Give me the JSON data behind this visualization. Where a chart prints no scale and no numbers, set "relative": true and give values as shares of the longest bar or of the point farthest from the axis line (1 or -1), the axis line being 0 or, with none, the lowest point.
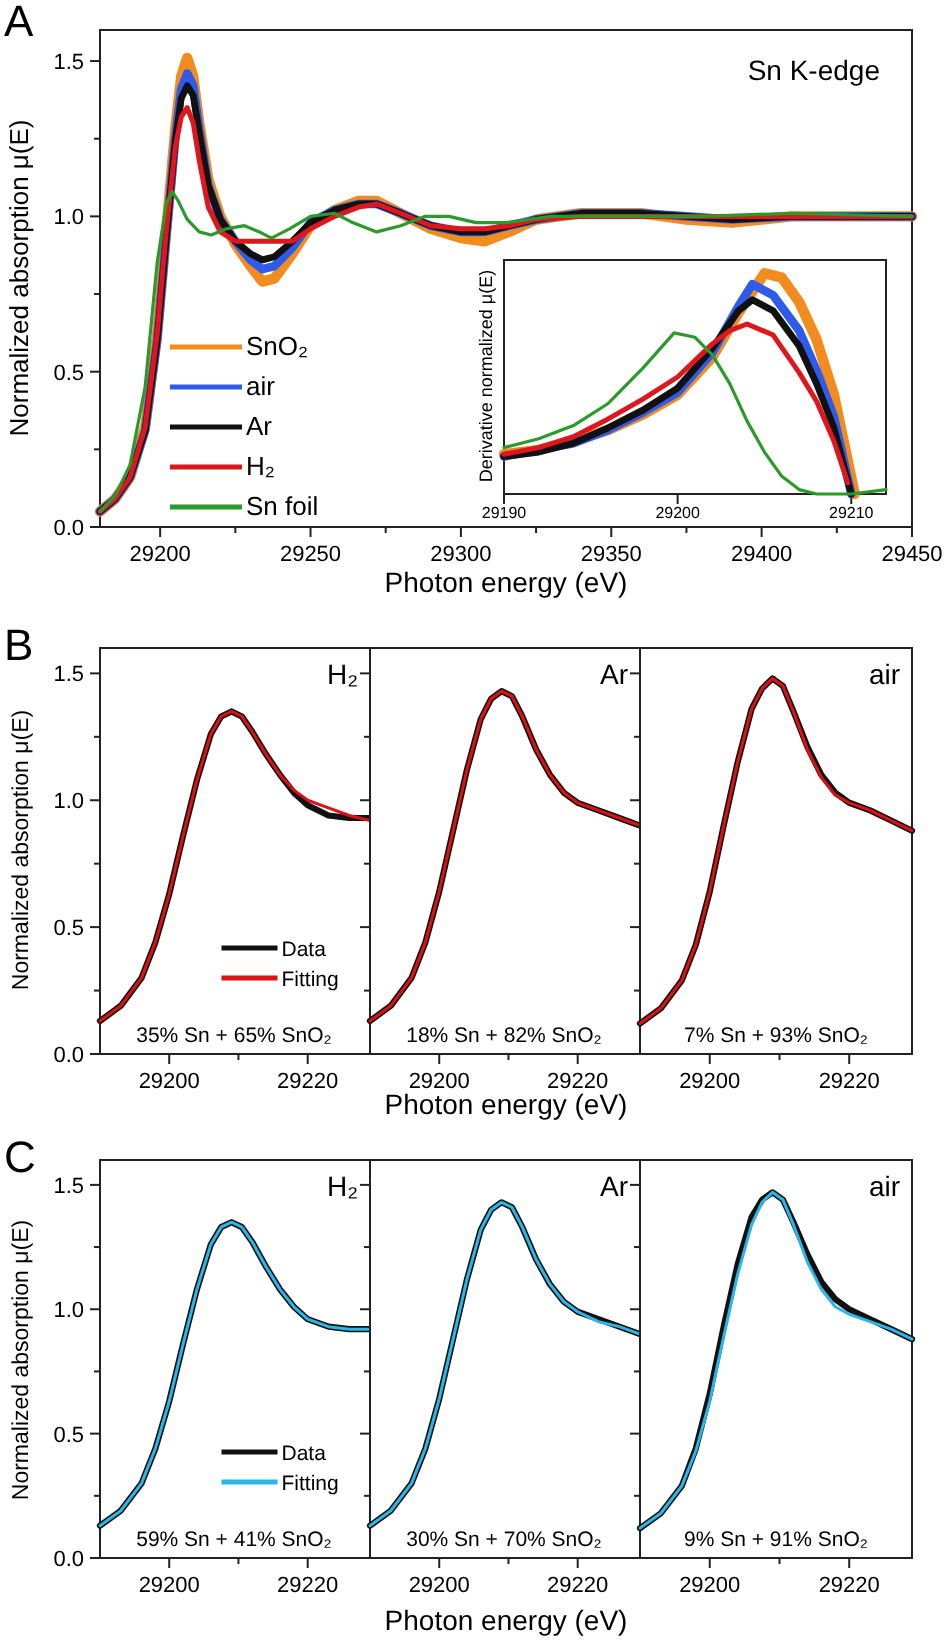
{
  "chart_data": [
    {
      "type": "line",
      "xlabel": "Photon energy  (eV)",
      "ylabel": "Normalized absorption μ(E)",
      "annotations": [
        "A",
        "Sn K-edge"
      ],
      "xlim": [
        29180,
        29450
      ],
      "ylim": [
        0,
        1.6
      ],
      "xticks": [
        29200,
        {
          "value": 29225,
          "label": null
        },
        29250,
        {
          "value": 29275,
          "label": null
        },
        29300,
        {
          "value": 29325,
          "label": null
        },
        29350,
        {
          "value": 29375,
          "label": null
        },
        29400,
        {
          "value": 29425,
          "label": null
        },
        29450
      ],
      "yticks": [
        {
          "value": 0,
          "label": "0.0"
        },
        {
          "value": 0.25,
          "label": null
        },
        {
          "value": 0.5,
          "label": "0.5"
        },
        {
          "value": 0.75,
          "label": null
        },
        {
          "value": 1,
          "label": "1.0"
        },
        {
          "value": 1.25,
          "label": null
        },
        {
          "value": 1.5,
          "label": "1.5"
        }
      ],
      "legend": "bottom left",
      "line_style": "solid",
      "x": [
        29180,
        29185,
        29190,
        29195,
        29199,
        29202,
        29205,
        29207,
        29209,
        29211,
        29213,
        29216,
        29220,
        29225,
        29230,
        29234,
        29238,
        29244,
        29250,
        29258,
        29266,
        29272,
        29280,
        29290,
        29300,
        29308,
        29316,
        29325,
        29340,
        29360,
        29375,
        29390,
        29410,
        29430,
        29450
      ],
      "series": [
        {
          "name": "SnO₂",
          "color": "#f28c1e",
          "values": [
            0.05,
            0.09,
            0.16,
            0.32,
            0.62,
            0.95,
            1.28,
            1.45,
            1.51,
            1.45,
            1.3,
            1.12,
            1.0,
            0.91,
            0.84,
            0.79,
            0.8,
            0.88,
            0.97,
            1.02,
            1.05,
            1.05,
            1.01,
            0.96,
            0.93,
            0.92,
            0.95,
            0.99,
            1.01,
            1.01,
            0.99,
            0.98,
            1.0,
            1.0,
            1.0
          ]
        },
        {
          "name": "air",
          "color": "#2e5bea",
          "values": [
            0.05,
            0.09,
            0.16,
            0.31,
            0.6,
            0.93,
            1.25,
            1.41,
            1.46,
            1.42,
            1.28,
            1.1,
            0.99,
            0.92,
            0.86,
            0.83,
            0.84,
            0.9,
            0.98,
            1.02,
            1.04,
            1.04,
            1.01,
            0.97,
            0.95,
            0.95,
            0.97,
            0.99,
            1.01,
            1.01,
            1.0,
            0.99,
            1.0,
            1.0,
            1.0
          ]
        },
        {
          "name": "Ar",
          "color": "#111111",
          "values": [
            0.05,
            0.09,
            0.16,
            0.31,
            0.6,
            0.93,
            1.24,
            1.38,
            1.42,
            1.39,
            1.27,
            1.1,
            0.99,
            0.92,
            0.88,
            0.86,
            0.87,
            0.92,
            0.98,
            1.02,
            1.04,
            1.04,
            1.01,
            0.97,
            0.95,
            0.95,
            0.97,
            0.99,
            1.01,
            1.01,
            1.0,
            0.99,
            1.0,
            1.0,
            1.0
          ]
        },
        {
          "name": "H₂",
          "color": "#e0161e",
          "values": [
            0.05,
            0.09,
            0.16,
            0.32,
            0.62,
            0.95,
            1.22,
            1.32,
            1.35,
            1.3,
            1.18,
            1.03,
            0.95,
            0.92,
            0.92,
            0.92,
            0.92,
            0.92,
            0.96,
            1.0,
            1.03,
            1.04,
            1.01,
            0.97,
            0.96,
            0.96,
            0.97,
            0.99,
            1.0,
            1.0,
            1.0,
            1.0,
            1.0,
            1.0,
            1.0
          ]
        },
        {
          "name": "Sn foil",
          "color": "#2a9a2a",
          "x": [
            29180,
            29185,
            29190,
            29195,
            29199,
            29202,
            29204,
            29206,
            29209,
            29213,
            29217,
            29222,
            29228,
            29233,
            29237,
            29243,
            29250,
            29258,
            29264,
            29272,
            29280,
            29288,
            29296,
            29305,
            29315,
            29330,
            29350,
            29380,
            29410,
            29450
          ],
          "values": [
            0.05,
            0.1,
            0.2,
            0.45,
            0.85,
            1.04,
            1.08,
            1.05,
            0.99,
            0.95,
            0.94,
            0.96,
            0.97,
            0.95,
            0.93,
            0.96,
            1.0,
            1.01,
            0.98,
            0.95,
            0.97,
            1.0,
            1.0,
            0.98,
            0.98,
            1.0,
            1.0,
            1.0,
            1.01,
            1.0
          ]
        }
      ]
    },
    {
      "type": "line",
      "ylabel": "Derivative normalized μ(E)",
      "relative": true,
      "xlim": [
        29190,
        29212
      ],
      "xticks": [
        29190,
        29200,
        29210
      ],
      "line_style": "solid",
      "series": [
        {
          "color": "#f28c1e",
          "x": [
            29190,
            29192,
            29194,
            29196,
            29198,
            29200,
            29202,
            29203.5,
            29205,
            29206,
            29207,
            29208,
            29209,
            29210.2
          ],
          "values": [
            0.18,
            0.2,
            0.24,
            0.29,
            0.36,
            0.45,
            0.62,
            0.82,
            1.0,
            0.98,
            0.87,
            0.7,
            0.45,
            0
          ]
        },
        {
          "color": "#2e5bea",
          "x": [
            29190,
            29192,
            29194,
            29196,
            29198,
            29200,
            29202,
            29203.5,
            29204.3,
            29205.5,
            29207,
            29208,
            29209,
            29210
          ],
          "values": [
            0.17,
            0.2,
            0.23,
            0.29,
            0.37,
            0.46,
            0.64,
            0.85,
            0.95,
            0.9,
            0.74,
            0.56,
            0.35,
            0
          ]
        },
        {
          "color": "#111111",
          "x": [
            29190,
            29192,
            29194,
            29196,
            29198,
            29200,
            29202,
            29203.5,
            29204.3,
            29205.5,
            29207,
            29208,
            29209,
            29210
          ],
          "values": [
            0.17,
            0.19,
            0.23,
            0.3,
            0.38,
            0.48,
            0.66,
            0.83,
            0.88,
            0.83,
            0.67,
            0.5,
            0.3,
            0
          ]
        },
        {
          "color": "#e0161e",
          "x": [
            29190,
            29192,
            29194,
            29196,
            29198,
            29200,
            29202,
            29203,
            29204,
            29205.5,
            29207,
            29208,
            29209,
            29209.8
          ],
          "values": [
            0.18,
            0.21,
            0.26,
            0.34,
            0.43,
            0.53,
            0.68,
            0.74,
            0.77,
            0.72,
            0.55,
            0.42,
            0.24,
            0.05
          ]
        },
        {
          "color": "#2a9a2a",
          "x": [
            29190,
            29192,
            29194,
            29196,
            29198,
            29199.8,
            29201,
            29202,
            29203,
            29204,
            29205,
            29206,
            29207,
            29208,
            29210,
            29212
          ],
          "values": [
            0.21,
            0.25,
            0.31,
            0.41,
            0.57,
            0.73,
            0.71,
            0.63,
            0.5,
            0.33,
            0.19,
            0.08,
            0.02,
            0,
            0,
            0.02
          ]
        }
      ]
    },
    {
      "type": "line",
      "title": "H₂",
      "ylabel": "Normalized absorption μ(E)",
      "annotations": [
        "B",
        "35% Sn + 65% SnO₂"
      ],
      "xlim": [
        29190,
        29229
      ],
      "ylim": [
        0,
        1.6
      ],
      "xticks": [
        29200,
        {
          "value": 29210,
          "label": null
        },
        29220
      ],
      "yticks": [
        {
          "value": 0,
          "label": "0.0"
        },
        {
          "value": 0.25,
          "label": null
        },
        {
          "value": 0.5,
          "label": "0.5"
        },
        {
          "value": 0.75,
          "label": null
        },
        {
          "value": 1,
          "label": "1.0"
        },
        {
          "value": 1.25,
          "label": null
        },
        {
          "value": 1.5,
          "label": "1.5"
        }
      ],
      "legend": "bottom",
      "line_style": "solid",
      "x": [
        29190,
        29193,
        29196,
        29198,
        29200,
        29202,
        29204,
        29206,
        29207.5,
        29209,
        29210.5,
        29212,
        29214,
        29216,
        29218,
        29220,
        29223,
        29226,
        29229
      ],
      "series": [
        {
          "name": "Data",
          "color": "#111111",
          "values": [
            0.13,
            0.19,
            0.3,
            0.44,
            0.63,
            0.86,
            1.08,
            1.26,
            1.33,
            1.35,
            1.33,
            1.27,
            1.18,
            1.1,
            1.03,
            0.98,
            0.94,
            0.93,
            0.93
          ]
        },
        {
          "name": "Fitting",
          "color": "#dd1111",
          "values": [
            0.13,
            0.19,
            0.3,
            0.44,
            0.63,
            0.86,
            1.08,
            1.26,
            1.33,
            1.35,
            1.33,
            1.27,
            1.18,
            1.1,
            1.04,
            1.0,
            0.97,
            0.94,
            0.92
          ]
        }
      ]
    },
    {
      "type": "line",
      "title": "Ar",
      "annotations": [
        "18% Sn + 82% SnO₂"
      ],
      "xlim": [
        29190,
        29229
      ],
      "ylim": [
        0,
        1.6
      ],
      "tick_labels": "x",
      "xticks": [
        29200,
        {
          "value": 29210,
          "label": null
        },
        29220
      ],
      "yticks": [
        0,
        {
          "value": 0.25,
          "label": null
        },
        0.5,
        {
          "value": 0.75,
          "label": null
        },
        1,
        {
          "value": 1.25,
          "label": null
        },
        1.5
      ],
      "xlabel": "Photon energy  (eV)",
      "line_style": "solid",
      "x": [
        29190,
        29193,
        29196,
        29198,
        29200,
        29202,
        29204,
        29206,
        29207.5,
        29209,
        29210.5,
        29212,
        29214,
        29216,
        29218,
        29220,
        29223,
        29226,
        29229
      ],
      "series": [
        {
          "color": "#111111",
          "values": [
            0.13,
            0.19,
            0.3,
            0.44,
            0.64,
            0.88,
            1.12,
            1.32,
            1.4,
            1.43,
            1.41,
            1.33,
            1.2,
            1.1,
            1.03,
            0.99,
            0.96,
            0.93,
            0.9
          ]
        },
        {
          "color": "#dd1111",
          "values": [
            0.13,
            0.19,
            0.3,
            0.44,
            0.64,
            0.88,
            1.12,
            1.32,
            1.4,
            1.43,
            1.41,
            1.33,
            1.2,
            1.1,
            1.03,
            0.99,
            0.96,
            0.93,
            0.9
          ]
        }
      ]
    },
    {
      "type": "line",
      "title": "air",
      "annotations": [
        "7% Sn + 93% SnO₂"
      ],
      "xlim": [
        29190,
        29229
      ],
      "ylim": [
        0,
        1.6
      ],
      "tick_labels": "x",
      "xticks": [
        29200,
        {
          "value": 29210,
          "label": null
        },
        29220
      ],
      "yticks": [
        0,
        {
          "value": 0.25,
          "label": null
        },
        0.5,
        {
          "value": 0.75,
          "label": null
        },
        1,
        {
          "value": 1.25,
          "label": null
        },
        1.5
      ],
      "line_style": "solid",
      "x": [
        29190,
        29193,
        29196,
        29198,
        29200,
        29202,
        29204,
        29206,
        29207.5,
        29209,
        29210.5,
        29212,
        29214,
        29216,
        29218,
        29220,
        29223,
        29226,
        29229
      ],
      "series": [
        {
          "color": "#111111",
          "values": [
            0.12,
            0.18,
            0.29,
            0.43,
            0.64,
            0.9,
            1.15,
            1.36,
            1.44,
            1.48,
            1.45,
            1.35,
            1.21,
            1.1,
            1.03,
            0.99,
            0.96,
            0.92,
            0.88
          ]
        },
        {
          "color": "#dd1111",
          "values": [
            0.12,
            0.18,
            0.29,
            0.43,
            0.64,
            0.9,
            1.15,
            1.36,
            1.44,
            1.48,
            1.45,
            1.35,
            1.2,
            1.09,
            1.02,
            0.99,
            0.96,
            0.92,
            0.88
          ]
        }
      ]
    },
    {
      "type": "line",
      "title": "H₂",
      "ylabel": "Normalized absorption μ(E)",
      "annotations": [
        "C",
        "59% Sn + 41% SnO₂"
      ],
      "xlim": [
        29190,
        29229
      ],
      "ylim": [
        0,
        1.6
      ],
      "xticks": [
        29200,
        {
          "value": 29210,
          "label": null
        },
        29220
      ],
      "yticks": [
        {
          "value": 0,
          "label": "0.0"
        },
        {
          "value": 0.25,
          "label": null
        },
        {
          "value": 0.5,
          "label": "0.5"
        },
        {
          "value": 0.75,
          "label": null
        },
        {
          "value": 1,
          "label": "1.0"
        },
        {
          "value": 1.25,
          "label": null
        },
        {
          "value": 1.5,
          "label": "1.5"
        }
      ],
      "legend": "bottom",
      "line_style": "solid",
      "x": [
        29190,
        29193,
        29196,
        29198,
        29200,
        29202,
        29204,
        29206,
        29207.5,
        29209,
        29210.5,
        29212,
        29214,
        29216,
        29218,
        29220,
        29223,
        29226,
        29229
      ],
      "series": [
        {
          "name": "Data",
          "color": "#111111",
          "values": [
            0.13,
            0.19,
            0.3,
            0.44,
            0.63,
            0.86,
            1.08,
            1.26,
            1.33,
            1.35,
            1.33,
            1.27,
            1.17,
            1.08,
            1.01,
            0.96,
            0.93,
            0.92,
            0.92
          ]
        },
        {
          "name": "Fitting",
          "color": "#29b6e8",
          "values": [
            0.13,
            0.19,
            0.3,
            0.44,
            0.63,
            0.86,
            1.08,
            1.26,
            1.33,
            1.35,
            1.33,
            1.27,
            1.17,
            1.08,
            1.01,
            0.96,
            0.93,
            0.92,
            0.92
          ]
        }
      ]
    },
    {
      "type": "line",
      "title": "Ar",
      "annotations": [
        "30% Sn + 70% SnO₂"
      ],
      "xlim": [
        29190,
        29229
      ],
      "ylim": [
        0,
        1.6
      ],
      "tick_labels": "x",
      "xticks": [
        29200,
        {
          "value": 29210,
          "label": null
        },
        29220
      ],
      "yticks": [
        0,
        {
          "value": 0.25,
          "label": null
        },
        0.5,
        {
          "value": 0.75,
          "label": null
        },
        1,
        {
          "value": 1.25,
          "label": null
        },
        1.5
      ],
      "xlabel": "Photon energy  (eV)",
      "line_style": "solid",
      "x": [
        29190,
        29193,
        29196,
        29198,
        29200,
        29202,
        29204,
        29206,
        29207.5,
        29209,
        29210.5,
        29212,
        29214,
        29216,
        29218,
        29220,
        29223,
        29226,
        29229
      ],
      "series": [
        {
          "color": "#111111",
          "values": [
            0.13,
            0.19,
            0.3,
            0.44,
            0.64,
            0.88,
            1.12,
            1.32,
            1.4,
            1.43,
            1.41,
            1.33,
            1.2,
            1.1,
            1.03,
            0.99,
            0.96,
            0.93,
            0.9
          ]
        },
        {
          "color": "#29b6e8",
          "values": [
            0.13,
            0.19,
            0.3,
            0.44,
            0.64,
            0.88,
            1.12,
            1.32,
            1.4,
            1.43,
            1.41,
            1.33,
            1.2,
            1.1,
            1.03,
            0.99,
            0.95,
            0.93,
            0.9
          ]
        }
      ]
    },
    {
      "type": "line",
      "title": "air",
      "annotations": [
        "9% Sn + 91% SnO₂"
      ],
      "xlim": [
        29190,
        29229
      ],
      "ylim": [
        0,
        1.6
      ],
      "tick_labels": "x",
      "xticks": [
        29200,
        {
          "value": 29210,
          "label": null
        },
        29220
      ],
      "yticks": [
        0,
        {
          "value": 0.25,
          "label": null
        },
        0.5,
        {
          "value": 0.75,
          "label": null
        },
        1,
        {
          "value": 1.25,
          "label": null
        },
        1.5
      ],
      "line_style": "solid",
      "x": [
        29190,
        29193,
        29196,
        29198,
        29200,
        29202,
        29204,
        29206,
        29207.5,
        29209,
        29210.5,
        29212,
        29214,
        29216,
        29218,
        29220,
        29223,
        29226,
        29229
      ],
      "series": [
        {
          "color": "#111111",
          "values": [
            0.12,
            0.18,
            0.29,
            0.44,
            0.66,
            0.93,
            1.18,
            1.37,
            1.44,
            1.47,
            1.44,
            1.35,
            1.22,
            1.11,
            1.04,
            1.0,
            0.96,
            0.92,
            0.88
          ]
        },
        {
          "color": "#29b6e8",
          "values": [
            0.12,
            0.18,
            0.29,
            0.43,
            0.63,
            0.89,
            1.14,
            1.34,
            1.43,
            1.47,
            1.44,
            1.34,
            1.19,
            1.08,
            1.01,
            0.98,
            0.95,
            0.92,
            0.88
          ]
        }
      ]
    }
  ]
}
